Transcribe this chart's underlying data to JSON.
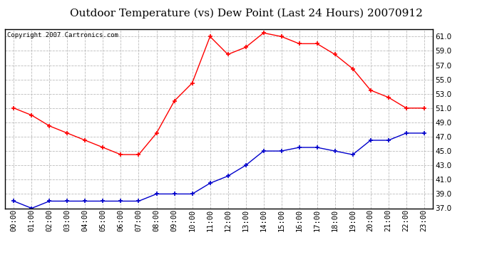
{
  "title": "Outdoor Temperature (vs) Dew Point (Last 24 Hours) 20070912",
  "copyright": "Copyright 2007 Cartronics.com",
  "hours": [
    "00:00",
    "01:00",
    "02:00",
    "03:00",
    "04:00",
    "05:00",
    "06:00",
    "07:00",
    "08:00",
    "09:00",
    "10:00",
    "11:00",
    "12:00",
    "13:00",
    "14:00",
    "15:00",
    "16:00",
    "17:00",
    "18:00",
    "19:00",
    "20:00",
    "21:00",
    "22:00",
    "23:00"
  ],
  "temp": [
    51.0,
    50.0,
    48.5,
    47.5,
    46.5,
    45.5,
    44.5,
    44.5,
    47.5,
    52.0,
    54.5,
    61.0,
    58.5,
    59.5,
    61.5,
    61.0,
    60.0,
    60.0,
    58.5,
    56.5,
    53.5,
    52.5,
    51.0,
    51.0
  ],
  "dewpoint": [
    38.0,
    37.0,
    38.0,
    38.0,
    38.0,
    38.0,
    38.0,
    38.0,
    39.0,
    39.0,
    39.0,
    40.5,
    41.5,
    43.0,
    45.0,
    45.0,
    45.5,
    45.5,
    45.0,
    44.5,
    46.5,
    46.5,
    47.5,
    47.5
  ],
  "temp_color": "#FF0000",
  "dew_color": "#0000CC",
  "marker": "+",
  "ylim": [
    37.0,
    62.0
  ],
  "yticks": [
    37.0,
    39.0,
    41.0,
    43.0,
    45.0,
    47.0,
    49.0,
    51.0,
    53.0,
    55.0,
    57.0,
    59.0,
    61.0
  ],
  "bg_color": "#FFFFFF",
  "plot_bg_color": "#FFFFFF",
  "grid_color": "#BBBBBB",
  "title_fontsize": 11,
  "tick_fontsize": 7.5,
  "copyright_fontsize": 6.5
}
